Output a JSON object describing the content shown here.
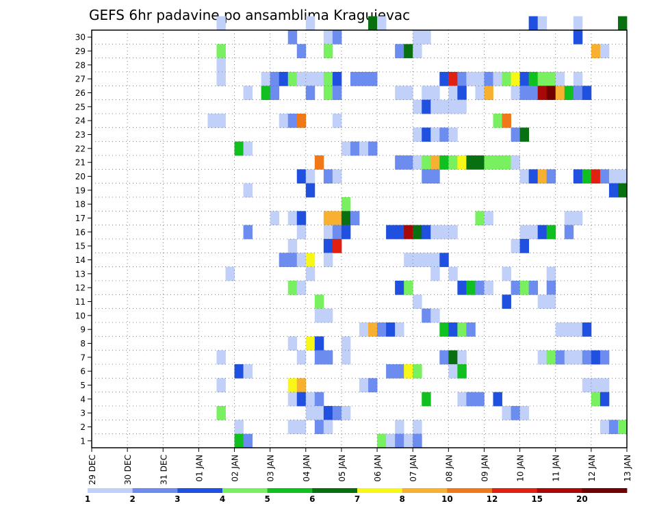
{
  "chart_data": {
    "type": "heatmap",
    "title": "GEFS 6hr padavine po ansamblima Kragujevac",
    "xlabel": "",
    "ylabel": "",
    "x_tick_labels": [
      "29 DEC",
      "30 DEC",
      "31 DEC",
      "01 JAN",
      "02 JAN",
      "03 JAN",
      "04 JAN",
      "05 JAN",
      "06 JAN",
      "07 JAN",
      "08 JAN",
      "09 JAN",
      "10 JAN",
      "11 JAN",
      "12 JAN",
      "13 JAN"
    ],
    "y_tick_labels": [
      "1",
      "2",
      "3",
      "4",
      "5",
      "6",
      "7",
      "8",
      "9",
      "10",
      "11",
      "12",
      "13",
      "14",
      "15",
      "16",
      "17",
      "18",
      "19",
      "20",
      "21",
      "22",
      "23",
      "24",
      "25",
      "26",
      "27",
      "28",
      "29",
      "30"
    ],
    "x_range": [
      0,
      60
    ],
    "y_range": [
      0,
      30
    ],
    "grid": true,
    "legend": {
      "placement": "bottom",
      "colors": [
        "#c0d0f8",
        "#6c8cf0",
        "#2050e0",
        "#78f060",
        "#10c020",
        "#087010",
        "#f8f818",
        "#f8b030",
        "#f07818",
        "#e02010",
        "#a80808",
        "#700000"
      ],
      "labels": [
        "1",
        "2",
        "3",
        "4",
        "5",
        "6",
        "7",
        "8",
        "10",
        "12",
        "15",
        "20"
      ]
    },
    "cells": [
      [
        14,
        30,
        1
      ],
      [
        24,
        30,
        1
      ],
      [
        31,
        30,
        6
      ],
      [
        32,
        30,
        1
      ],
      [
        49,
        30,
        3
      ],
      [
        50,
        30,
        1
      ],
      [
        54,
        30,
        1
      ],
      [
        59,
        30,
        6
      ],
      [
        22,
        29,
        2
      ],
      [
        26,
        29,
        1
      ],
      [
        27,
        29,
        2
      ],
      [
        36,
        29,
        1
      ],
      [
        37,
        29,
        1
      ],
      [
        54,
        29,
        3
      ],
      [
        14,
        28,
        4
      ],
      [
        23,
        28,
        2
      ],
      [
        26,
        28,
        4
      ],
      [
        34,
        28,
        2
      ],
      [
        35,
        28,
        6
      ],
      [
        36,
        28,
        1
      ],
      [
        56,
        28,
        8
      ],
      [
        57,
        28,
        1
      ],
      [
        14,
        27,
        1
      ],
      [
        14,
        26,
        1
      ],
      [
        19,
        26,
        1
      ],
      [
        20,
        26,
        2
      ],
      [
        21,
        26,
        3
      ],
      [
        22,
        26,
        4
      ],
      [
        23,
        26,
        1
      ],
      [
        24,
        26,
        1
      ],
      [
        25,
        26,
        1
      ],
      [
        26,
        26,
        4
      ],
      [
        27,
        26,
        3
      ],
      [
        29,
        26,
        2
      ],
      [
        30,
        26,
        2
      ],
      [
        31,
        26,
        2
      ],
      [
        39,
        26,
        3
      ],
      [
        40,
        26,
        10
      ],
      [
        41,
        26,
        2
      ],
      [
        42,
        26,
        1
      ],
      [
        43,
        26,
        1
      ],
      [
        44,
        26,
        2
      ],
      [
        45,
        26,
        1
      ],
      [
        46,
        26,
        4
      ],
      [
        47,
        26,
        7
      ],
      [
        48,
        26,
        3
      ],
      [
        49,
        26,
        5
      ],
      [
        50,
        26,
        4
      ],
      [
        51,
        26,
        4
      ],
      [
        52,
        26,
        1
      ],
      [
        54,
        26,
        1
      ],
      [
        17,
        25,
        1
      ],
      [
        19,
        25,
        5
      ],
      [
        20,
        25,
        2
      ],
      [
        24,
        25,
        2
      ],
      [
        26,
        25,
        4
      ],
      [
        27,
        25,
        2
      ],
      [
        34,
        25,
        1
      ],
      [
        35,
        25,
        1
      ],
      [
        37,
        25,
        1
      ],
      [
        38,
        25,
        1
      ],
      [
        40,
        25,
        1
      ],
      [
        41,
        25,
        3
      ],
      [
        43,
        25,
        1
      ],
      [
        44,
        25,
        8
      ],
      [
        47,
        25,
        1
      ],
      [
        48,
        25,
        2
      ],
      [
        49,
        25,
        2
      ],
      [
        50,
        25,
        11
      ],
      [
        51,
        25,
        12
      ],
      [
        52,
        25,
        8
      ],
      [
        53,
        25,
        5
      ],
      [
        54,
        25,
        2
      ],
      [
        55,
        25,
        3
      ],
      [
        36,
        24,
        1
      ],
      [
        37,
        24,
        3
      ],
      [
        38,
        24,
        1
      ],
      [
        39,
        24,
        1
      ],
      [
        40,
        24,
        1
      ],
      [
        41,
        24,
        1
      ],
      [
        13,
        23,
        1
      ],
      [
        14,
        23,
        1
      ],
      [
        21,
        23,
        1
      ],
      [
        22,
        23,
        2
      ],
      [
        23,
        23,
        9
      ],
      [
        27,
        23,
        1
      ],
      [
        45,
        23,
        4
      ],
      [
        46,
        23,
        9
      ],
      [
        36,
        22,
        1
      ],
      [
        37,
        22,
        3
      ],
      [
        38,
        22,
        1
      ],
      [
        39,
        22,
        2
      ],
      [
        40,
        22,
        1
      ],
      [
        47,
        22,
        2
      ],
      [
        48,
        22,
        6
      ],
      [
        16,
        21,
        5
      ],
      [
        17,
        21,
        1
      ],
      [
        28,
        21,
        1
      ],
      [
        29,
        21,
        2
      ],
      [
        30,
        21,
        1
      ],
      [
        31,
        21,
        2
      ],
      [
        25,
        20,
        9
      ],
      [
        34,
        20,
        2
      ],
      [
        35,
        20,
        2
      ],
      [
        36,
        20,
        1
      ],
      [
        37,
        20,
        4
      ],
      [
        38,
        20,
        8
      ],
      [
        39,
        20,
        5
      ],
      [
        40,
        20,
        4
      ],
      [
        41,
        20,
        7
      ],
      [
        42,
        20,
        6
      ],
      [
        43,
        20,
        6
      ],
      [
        44,
        20,
        4
      ],
      [
        45,
        20,
        4
      ],
      [
        46,
        20,
        4
      ],
      [
        47,
        20,
        1
      ],
      [
        23,
        19,
        3
      ],
      [
        24,
        19,
        1
      ],
      [
        26,
        19,
        2
      ],
      [
        27,
        19,
        1
      ],
      [
        37,
        19,
        2
      ],
      [
        38,
        19,
        2
      ],
      [
        48,
        19,
        1
      ],
      [
        49,
        19,
        3
      ],
      [
        50,
        19,
        8
      ],
      [
        51,
        19,
        2
      ],
      [
        54,
        19,
        3
      ],
      [
        55,
        19,
        5
      ],
      [
        56,
        19,
        10
      ],
      [
        57,
        19,
        2
      ],
      [
        58,
        19,
        1
      ],
      [
        59,
        19,
        1
      ],
      [
        17,
        18,
        1
      ],
      [
        24,
        18,
        3
      ],
      [
        58,
        18,
        3
      ],
      [
        59,
        18,
        6
      ],
      [
        28,
        17,
        4
      ],
      [
        20,
        16,
        1
      ],
      [
        22,
        16,
        1
      ],
      [
        23,
        16,
        3
      ],
      [
        26,
        16,
        8
      ],
      [
        27,
        16,
        8
      ],
      [
        28,
        16,
        6
      ],
      [
        29,
        16,
        2
      ],
      [
        43,
        16,
        4
      ],
      [
        44,
        16,
        1
      ],
      [
        53,
        16,
        1
      ],
      [
        54,
        16,
        1
      ],
      [
        17,
        15,
        2
      ],
      [
        23,
        15,
        1
      ],
      [
        26,
        15,
        1
      ],
      [
        27,
        15,
        2
      ],
      [
        28,
        15,
        3
      ],
      [
        33,
        15,
        3
      ],
      [
        34,
        15,
        3
      ],
      [
        35,
        15,
        11
      ],
      [
        36,
        15,
        6
      ],
      [
        37,
        15,
        3
      ],
      [
        38,
        15,
        1
      ],
      [
        39,
        15,
        1
      ],
      [
        40,
        15,
        1
      ],
      [
        48,
        15,
        1
      ],
      [
        49,
        15,
        1
      ],
      [
        50,
        15,
        3
      ],
      [
        51,
        15,
        5
      ],
      [
        53,
        15,
        2
      ],
      [
        22,
        14,
        1
      ],
      [
        26,
        14,
        3
      ],
      [
        27,
        14,
        10
      ],
      [
        47,
        14,
        1
      ],
      [
        48,
        14,
        3
      ],
      [
        21,
        13,
        2
      ],
      [
        22,
        13,
        2
      ],
      [
        23,
        13,
        1
      ],
      [
        24,
        13,
        7
      ],
      [
        26,
        13,
        1
      ],
      [
        35,
        13,
        1
      ],
      [
        36,
        13,
        1
      ],
      [
        37,
        13,
        1
      ],
      [
        38,
        13,
        1
      ],
      [
        39,
        13,
        3
      ],
      [
        15,
        12,
        1
      ],
      [
        24,
        12,
        1
      ],
      [
        38,
        12,
        1
      ],
      [
        40,
        12,
        1
      ],
      [
        46,
        12,
        1
      ],
      [
        51,
        12,
        1
      ],
      [
        22,
        11,
        4
      ],
      [
        23,
        11,
        1
      ],
      [
        34,
        11,
        3
      ],
      [
        35,
        11,
        4
      ],
      [
        41,
        11,
        3
      ],
      [
        42,
        11,
        5
      ],
      [
        43,
        11,
        2
      ],
      [
        44,
        11,
        1
      ],
      [
        47,
        11,
        2
      ],
      [
        48,
        11,
        4
      ],
      [
        49,
        11,
        2
      ],
      [
        51,
        11,
        2
      ],
      [
        25,
        10,
        4
      ],
      [
        36,
        10,
        1
      ],
      [
        46,
        10,
        3
      ],
      [
        50,
        10,
        1
      ],
      [
        51,
        10,
        1
      ],
      [
        25,
        9,
        1
      ],
      [
        26,
        9,
        1
      ],
      [
        37,
        9,
        2
      ],
      [
        38,
        9,
        1
      ],
      [
        30,
        8,
        1
      ],
      [
        31,
        8,
        8
      ],
      [
        32,
        8,
        2
      ],
      [
        33,
        8,
        3
      ],
      [
        34,
        8,
        1
      ],
      [
        39,
        8,
        5
      ],
      [
        40,
        8,
        3
      ],
      [
        41,
        8,
        4
      ],
      [
        42,
        8,
        2
      ],
      [
        52,
        8,
        1
      ],
      [
        53,
        8,
        1
      ],
      [
        54,
        8,
        1
      ],
      [
        55,
        8,
        3
      ],
      [
        22,
        7,
        1
      ],
      [
        24,
        7,
        7
      ],
      [
        25,
        7,
        3
      ],
      [
        28,
        7,
        1
      ],
      [
        14,
        6,
        1
      ],
      [
        23,
        6,
        1
      ],
      [
        25,
        6,
        2
      ],
      [
        26,
        6,
        2
      ],
      [
        28,
        6,
        1
      ],
      [
        39,
        6,
        2
      ],
      [
        40,
        6,
        6
      ],
      [
        41,
        6,
        1
      ],
      [
        50,
        6,
        1
      ],
      [
        51,
        6,
        4
      ],
      [
        52,
        6,
        2
      ],
      [
        53,
        6,
        1
      ],
      [
        54,
        6,
        1
      ],
      [
        55,
        6,
        2
      ],
      [
        56,
        6,
        3
      ],
      [
        57,
        6,
        2
      ],
      [
        16,
        5,
        3
      ],
      [
        17,
        5,
        1
      ],
      [
        33,
        5,
        2
      ],
      [
        34,
        5,
        2
      ],
      [
        35,
        5,
        7
      ],
      [
        36,
        5,
        4
      ],
      [
        40,
        5,
        1
      ],
      [
        41,
        5,
        5
      ],
      [
        14,
        4,
        1
      ],
      [
        22,
        4,
        7
      ],
      [
        23,
        4,
        8
      ],
      [
        30,
        4,
        1
      ],
      [
        31,
        4,
        2
      ],
      [
        55,
        4,
        1
      ],
      [
        56,
        4,
        1
      ],
      [
        57,
        4,
        1
      ],
      [
        22,
        3,
        1
      ],
      [
        23,
        3,
        3
      ],
      [
        24,
        3,
        1
      ],
      [
        25,
        3,
        2
      ],
      [
        37,
        3,
        5
      ],
      [
        41,
        3,
        1
      ],
      [
        42,
        3,
        2
      ],
      [
        43,
        3,
        2
      ],
      [
        45,
        3,
        3
      ],
      [
        56,
        3,
        4
      ],
      [
        57,
        3,
        3
      ],
      [
        14,
        2,
        4
      ],
      [
        24,
        2,
        1
      ],
      [
        25,
        2,
        1
      ],
      [
        26,
        2,
        3
      ],
      [
        27,
        2,
        2
      ],
      [
        28,
        2,
        1
      ],
      [
        46,
        2,
        1
      ],
      [
        47,
        2,
        2
      ],
      [
        48,
        2,
        1
      ],
      [
        16,
        1,
        1
      ],
      [
        22,
        1,
        1
      ],
      [
        23,
        1,
        1
      ],
      [
        25,
        1,
        2
      ],
      [
        26,
        1,
        1
      ],
      [
        34,
        1,
        1
      ],
      [
        36,
        1,
        1
      ],
      [
        57,
        1,
        1
      ],
      [
        58,
        1,
        2
      ],
      [
        59,
        1,
        4
      ],
      [
        16,
        0,
        5
      ],
      [
        17,
        0,
        2
      ],
      [
        32,
        0,
        4
      ],
      [
        33,
        0,
        1
      ],
      [
        34,
        0,
        2
      ],
      [
        35,
        0,
        1
      ],
      [
        36,
        0,
        2
      ]
    ]
  }
}
